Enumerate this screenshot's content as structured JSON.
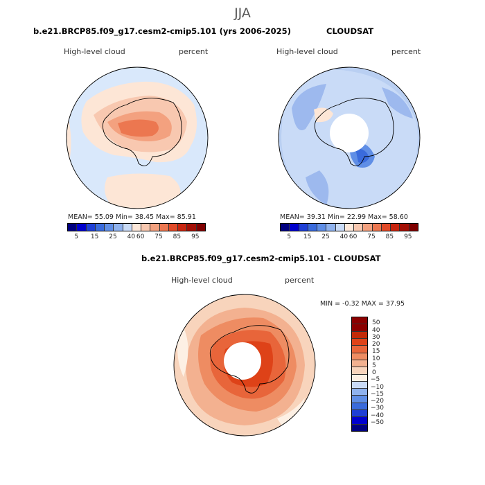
{
  "season": "JJA",
  "panels": {
    "model": {
      "title": "b.e21.BRCP85.f09_g17.cesm2-cmip5.101 (yrs 2006-2025)",
      "variable": "High-level cloud",
      "units": "percent",
      "stats": "MEAN=   55.09   Min=   38.45   Max=   85.91"
    },
    "obs": {
      "title": "CLOUDSAT",
      "variable": "High-level cloud",
      "units": "percent",
      "stats": "MEAN=   39.31   Min=   22.99   Max=   58.60"
    },
    "diff": {
      "title": "b.e21.BRCP85.f09_g17.cesm2-cmip5.101 - CLOUDSAT",
      "variable": "High-level cloud",
      "units": "percent",
      "stats": "MIN =   -0.32  MAX =   37.95"
    }
  },
  "colors": {
    "abs_scale": [
      "#000080",
      "#0000cd",
      "#1e3fd6",
      "#3a6bdc",
      "#5f8ee6",
      "#8fb2ee",
      "#c9dbf7",
      "#fde8da",
      "#f8c8b0",
      "#f3a17f",
      "#ec7750",
      "#e14a28",
      "#c8250f",
      "#a30f05",
      "#7f0000"
    ],
    "diff_scale": [
      "#000080",
      "#0000cd",
      "#1e3fd6",
      "#3a6bdc",
      "#5f8ee6",
      "#8fb2ee",
      "#c9dbf7",
      "#fdf0e4",
      "#f8d4bc",
      "#f3b190",
      "#ee8c62",
      "#e8653a",
      "#de4218",
      "#c22a08",
      "#8b0000"
    ]
  },
  "chart_data": [
    {
      "type": "heatmap",
      "title": "b.e21.BRCP85.f09_g17.cesm2-cmip5.101 (yrs 2006-2025)",
      "subtitle": "High-level cloud",
      "units": "percent",
      "colorbar_ticks": [
        5,
        15,
        25,
        40,
        60,
        75,
        85,
        95
      ],
      "mean": 55.09,
      "min": 38.45,
      "max": 85.91
    },
    {
      "type": "heatmap",
      "title": "CLOUDSAT",
      "subtitle": "High-level cloud",
      "units": "percent",
      "colorbar_ticks": [
        5,
        15,
        25,
        40,
        60,
        75,
        85,
        95
      ],
      "mean": 39.31,
      "min": 22.99,
      "max": 58.6
    },
    {
      "type": "heatmap",
      "title": "b.e21.BRCP85.f09_g17.cesm2-cmip5.101 - CLOUDSAT",
      "subtitle": "High-level cloud",
      "units": "percent",
      "colorbar_ticks": [
        50,
        40,
        30,
        20,
        15,
        10,
        5,
        0,
        -5,
        -10,
        -15,
        -20,
        -30,
        -40,
        -50
      ],
      "min": -0.32,
      "max": 37.95
    }
  ]
}
